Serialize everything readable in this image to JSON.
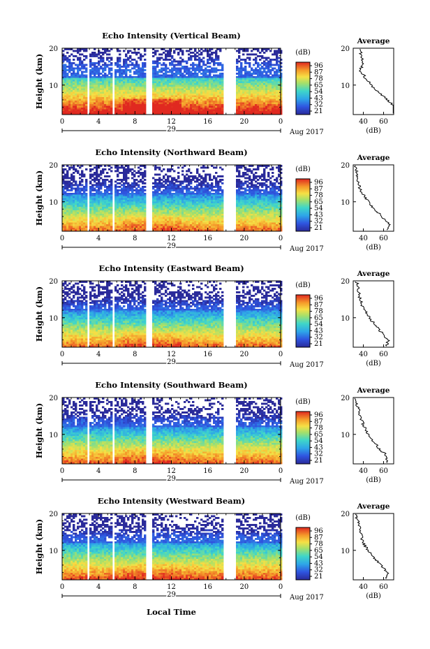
{
  "figure": {
    "xlabel": "Local Time",
    "time_ticks": [
      "0",
      "4",
      "8",
      "12",
      "16",
      "20",
      "0"
    ],
    "avg_title": "Average",
    "avg_xlabel": "(dB)",
    "date_day": "29",
    "date_month": "Aug 2017"
  },
  "colorbar": {
    "unit": "(dB)",
    "labels": [
      "96",
      "87",
      "78",
      "65",
      "54",
      "43",
      "32",
      "21"
    ]
  },
  "chart_data": [
    {
      "type": "heatmap",
      "title": "Echo Intensity (Vertical Beam)",
      "ylabel": "Height (km)",
      "x_range_hours": [
        0,
        24
      ],
      "ylim_km": [
        2,
        20
      ],
      "y_ticks": [
        "20",
        "10"
      ],
      "avg_ticks": [
        "40",
        "60"
      ],
      "avg_profile": {
        "height_km": [
          20,
          18,
          16,
          14,
          12,
          10,
          8,
          6,
          4,
          2
        ],
        "value_db": [
          36,
          38,
          39,
          37,
          42,
          48,
          55,
          64,
          72,
          69
        ]
      }
    },
    {
      "type": "heatmap",
      "title": "Echo Intensity (Northward Beam)",
      "ylabel": "Height (km)",
      "x_range_hours": [
        0,
        24
      ],
      "ylim_km": [
        2,
        20
      ],
      "y_ticks": [
        "20",
        "10"
      ],
      "avg_ticks": [
        "40",
        "60"
      ],
      "avg_profile": {
        "height_km": [
          20,
          18,
          16,
          14,
          12,
          10,
          8,
          6,
          4,
          2
        ],
        "value_db": [
          32,
          34,
          35,
          36,
          40,
          45,
          51,
          58,
          66,
          63
        ]
      }
    },
    {
      "type": "heatmap",
      "title": "Echo Intensity (Eastward Beam)",
      "ylabel": "Height (km)",
      "x_range_hours": [
        0,
        24
      ],
      "ylim_km": [
        2,
        20
      ],
      "y_ticks": [
        "20",
        "10"
      ],
      "avg_ticks": [
        "40",
        "60"
      ],
      "avg_profile": {
        "height_km": [
          20,
          18,
          16,
          14,
          12,
          10,
          8,
          6,
          4,
          2
        ],
        "value_db": [
          33,
          35,
          36,
          38,
          41,
          46,
          52,
          58,
          65,
          62
        ]
      }
    },
    {
      "type": "heatmap",
      "title": "Echo Intensity (Southward Beam)",
      "ylabel": "Height (km)",
      "x_range_hours": [
        0,
        24
      ],
      "ylim_km": [
        2,
        20
      ],
      "y_ticks": [
        "20",
        "10"
      ],
      "avg_ticks": [
        "40",
        "60"
      ],
      "avg_profile": {
        "height_km": [
          20,
          18,
          16,
          14,
          12,
          10,
          8,
          6,
          4,
          2
        ],
        "value_db": [
          31,
          34,
          36,
          38,
          41,
          45,
          50,
          56,
          64,
          62
        ]
      }
    },
    {
      "type": "heatmap",
      "title": "Echo Intensity (Westward Beam)",
      "ylabel": "Height (km)",
      "x_range_hours": [
        0,
        24
      ],
      "ylim_km": [
        2,
        20
      ],
      "y_ticks": [
        "20",
        "10"
      ],
      "avg_ticks": [
        "40",
        "60"
      ],
      "avg_profile": {
        "height_km": [
          20,
          18,
          16,
          14,
          12,
          10,
          8,
          6,
          4,
          2
        ],
        "value_db": [
          32,
          35,
          36,
          38,
          40,
          45,
          51,
          57,
          64,
          62
        ]
      }
    }
  ]
}
